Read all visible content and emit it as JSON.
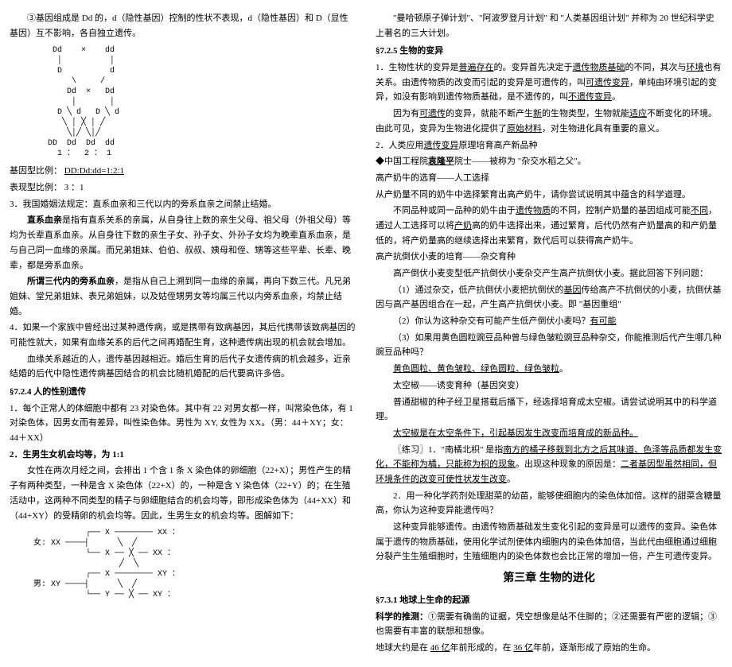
{
  "left": {
    "p3": "③基因组成是 Dd 的，d（隐性基因）控制的性状不表现，d（隐性基因）和 D（显性基因）互不影响，各自独立遗传。",
    "diag1": "    Dd    ×    dd\n     │          │\n     D          d\n        \\     /\n       Dd  ×   Dd\n        │       │\n     D ╲ d   D ╲ d\n      ╲ │ ╳ │ ╱\n       ╲│╱ ╲│╱\n   DD  Dd  Dd  dd\n     1 ：  2 ： 1",
    "ratio1_label": "基因型比例：",
    "ratio1_val": "DD:Dd:dd=1:2:1",
    "ratio2_label": "表现型比例：",
    "ratio2_val": "3 ：1",
    "p_marriage": "3．我国婚姻法规定：直系血亲和三代以内的旁系血亲之间禁止结婚。",
    "p_direct": "直系血亲",
    "p_direct_body": "是指有直系关系的亲属，从自身往上数的亲生父母、祖父母（外祖父母）等均为长辈直系血亲。从自身往下数的亲生子女、孙子女、外孙子女均为晚辈直系血亲，是与自己同一血缘的亲属。而兄弟姐妹、伯伯、叔叔、姨母和侄、甥等这些平辈、长辈、晚辈，都是旁系血亲。",
    "p_side_label": "所谓三代内的旁系血亲",
    "p_side_body": "，是指从自己上溯到同一血缘的亲属，再向下数三代。凡兄弟姐妹、堂兄弟姐妹、表兄弟姐妹，以及姑侄甥男女等均属三代以内旁系血亲，均禁止结婚。",
    "p4": "4．如果一个家族中曾经出过某种遗传病，或是携带有致病基因，其后代携带该致病基因的可能性就大，如果有血缘关系的后代之间再婚配生育，这种遗传病出现的机会就会增加。",
    "p_blood": "血缘关系越近的人，遗传基因越相近。婚后生育的后代子女遗传病的机会越多，近亲结婚的后代中隐性遗传病基因结合的机会比随机婚配的后代要高许多倍。",
    "sec724": "§7.2.4 人的性别遗传",
    "p724_1": "1．每个正常人的体细胞中都有 23 对染色体。其中有 22 对男女都一样，叫常染色体，有 1 对染色体，因男女而有差异，叫性染色体。男性为 XY, 女性为 XX。（男：44＋XY；女：44＋XX）",
    "p724_2_label": "2．生男生女机会均等，为 1:1",
    "p724_2_body": "女性在两次月经之间，会排出 1 个含 1 条 X 染色体的卵细胞（22+X）；男性产生的精子有两种类型，一种是含 X 染色体（22+X）的，一种是含 Y 染色体（22+Y）的；在生殖活动中，这两种不同类型的精子与卵细胞结合的机会均等，即形成染色体为（44+XX）和（44+XY）的受精卵的机会均等。因此，生男生女的机会均等。图解如下：",
    "diag2": "           ┌── X ──────── XX ：\n女: XX ────┤      ╲  ╱\n           └── X ── ╳ ── XX ：\n                  ╱  ╲\n           ┌── X ──────── XY ：\n男: XY ────┤      ╲  ╱\n           └── Y ── ╳ ── XY ："
  },
  "right": {
    "p_top": "\"曼哈顿原子弹计划\"、\"阿波罗登月计划\" 和 \"人类基因组计划\" 并称为 20 世纪科学史上著名的三大计划。",
    "sec725": "§7.2.5 生物的变异",
    "p725_1_a": "1．生物性状的变异是",
    "p725_1_u1": "普遍存在",
    "p725_1_b": "的。变异首先决定于",
    "p725_1_u2": "遗传物质基础",
    "p725_1_c": "的不同，其次与",
    "p725_1_u3": "环境",
    "p725_1_d": "也有关系。由遗传物质的改变而引起的变异是可遗传的，叫",
    "p725_1_u4": "可遗传变异",
    "p725_1_e": "，单纯由环境引起的变异，如没有影响到遗传物质基础，是不遗传的，叫",
    "p725_1_u5": "不遗传变异",
    "p725_1_f": "。",
    "p725_1x_a": "因为有",
    "p725_1x_u1": "可遗传",
    "p725_1x_b": "的变异，就能不断产生",
    "p725_1x_u2": "新",
    "p725_1x_c": "的生物类型，生物就能",
    "p725_1x_u3": "适应",
    "p725_1x_d": "不断变化的环境。由此可见，变异为生物进化提供了",
    "p725_1x_u4": "原始材料",
    "p725_1x_e": "，对生物进化具有重要的意义。",
    "p725_2_a": "2．人类应用",
    "p725_2_u": "遗传变异",
    "p725_2_b": "原理培育高产新品种",
    "p_yuan_a": "◆中国工程院",
    "p_yuan_u": "袁隆平",
    "p_yuan_b": "院士——被称为 \"杂交水稻之父\"。",
    "p_cow1": "高产奶牛的选育——人工选择",
    "p_cow2": "从产奶量不同的奶牛中选择繁育出高产奶牛，请你尝试说明其中蕴含的科学道理。",
    "p_cow3_a": "不同品种或同一品种的奶牛由于",
    "p_cow3_u1": "遗传物质",
    "p_cow3_b": "的不同，控制产奶量的基因组成可能",
    "p_cow3_u2": "不同",
    "p_cow3_c": "，通过人工选择可以将",
    "p_cow3_u3": "产奶",
    "p_cow3_d": "高的奶牛选择出来，通过繁育，后代仍然有产奶量高的和产奶量低的，将产奶量高的继续选择出来繁育，数代后可以获得高产奶牛。",
    "p_wheat1": "高产抗倒伏小麦的培育——杂交育种",
    "p_wheat2": "高产倒伏小麦变型低产抗倒伏小麦杂交产生高产抗倒伏小麦。据此回答下列问题：",
    "p_wheat_q1_a": "（1）通过杂交，低产抗倒伏小麦把抗倒伏的",
    "p_wheat_q1_u": "基因",
    "p_wheat_q1_b": "传给高产不抗倒伏的小麦，抗倒伏基因与高产基因组合在一起，产生高产抗倒伏小麦。即 \"基因重组\"",
    "p_wheat_q2_a": "（2）你认为这种杂交有可能产生低产倒伏小麦吗？",
    "p_wheat_q2_u": "有可能",
    "p_wheat_q3": "（3）如果用黄色圆粒豌豆品种曾与绿色皱粒豌豆品种杂交，你能推测后代产生哪几种豌豆品种吗？",
    "p_wheat_a3": "黄色圆粒、黄色皱粒、绿色圆粒、绿色皱粒",
    "p_space1": "太空椒——诱变育种（基因突变）",
    "p_space2": "普通甜椒的种子经卫星搭载后播下，经选择培育成太空椒。请尝试说明其中的科学道理。",
    "p_space3_a": "太空椒是在太空条件下，引起基因发生改变而培育成的新品种。",
    "p_lx_a": "〖练习〗1．\"南橘北枳\" 是指",
    "p_lx_u1": "南方的橘子移栽到北方之后其味道、色泽等品质都发生变化，不能称为橘，只能称为枳的现象",
    "p_lx_b": "。出现这种现象的原因是：",
    "p_lx_u2": "二者基因型虽然相同，但环境条件的改变可使性状发生改变",
    "p_lx_c": "。",
    "p_lx2": "2．用一种化学药剂处理甜菜的幼苗，能够使细胞内的染色体加倍。这样的甜菜含糖量高，你认为这种变异能遗传吗？",
    "p_lx2_ans": "这种变异能够遗传。由遗传物质基础发生变化引起的变异是可以遗传的变异。染色体属于遗传的物质基础，使用化学试剂使体内细胞内的染色体加倍，当此代由细胞通过细胞分裂产生生殖细胞时，生殖细胞内的染色体数也会比正常的增加一倍，产生可遗传变异。",
    "chapter": "第三章 生物的进化",
    "sec731": "§7.3.1 地球上生命的起源",
    "p731_a": "科学的推测：",
    "p731_b": "①需要有确凿的证据，凭空想像是站不住脚的；②还需要有严密的逻辑；③也需要有丰富的联想和想像。",
    "p731_2_a": "地球大约是在 ",
    "p731_2_u1": "46 亿",
    "p731_2_b": "年前形成的，在 ",
    "p731_2_u2": "36 亿",
    "p731_2_c": "年前，逐渐形成了原始的生命。"
  }
}
